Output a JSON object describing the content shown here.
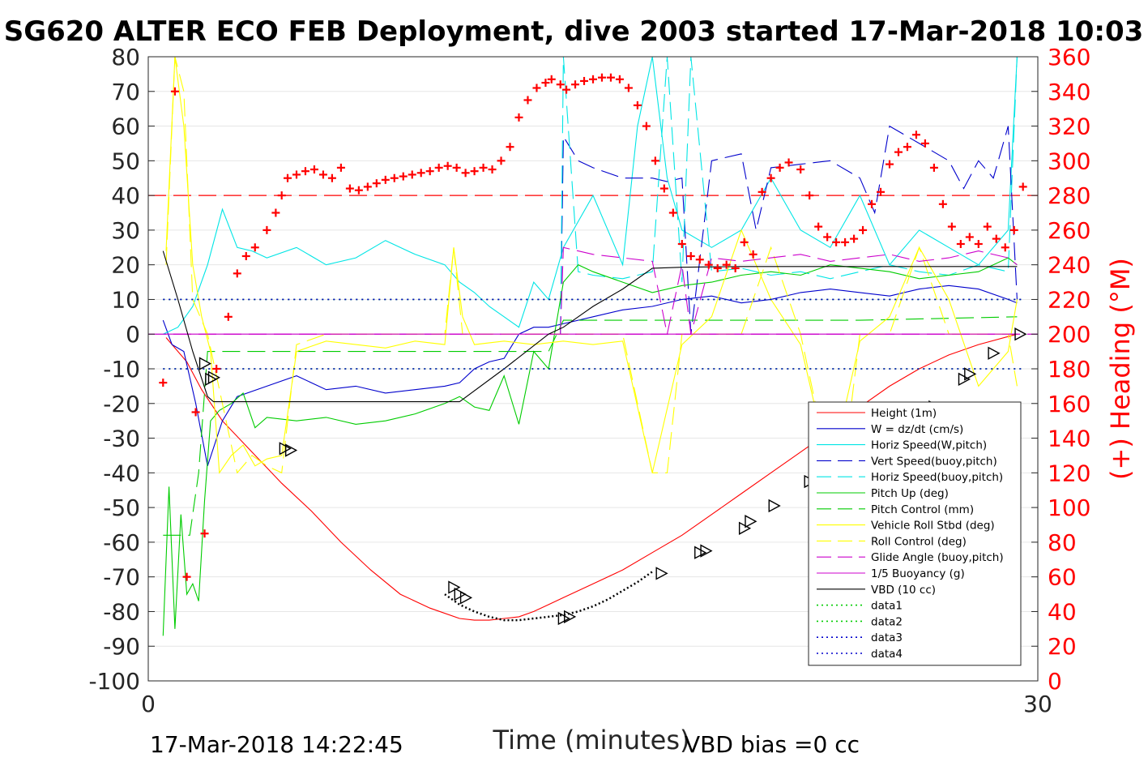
{
  "title": "SG620 ALTER ECO FEB Deployment, dive 2003 started 17-Mar-2018 10:03",
  "footer": {
    "start_time": "17-Mar-2018 14:22:45",
    "vbd_bias": "VBD bias =0 cc"
  },
  "colors": {
    "height": "#ff0000",
    "w": "#0000cc",
    "horiz_w": "#00e5e5",
    "vert_buoy": "#0000cc",
    "horiz_buoy": "#00e5e5",
    "pitch": "#00cc00",
    "pitch_control": "#00cc00",
    "roll": "#ffff00",
    "roll_control": "#ffff00",
    "glide": "#cc00cc",
    "buoyancy": "#cc00cc",
    "vbd": "#000000",
    "heading": "#ff0000",
    "grid": "#e6e6e6"
  },
  "chart_data": {
    "type": "line",
    "title": "SG620 ALTER ECO FEB Deployment, dive 2003 started 17-Mar-2018 10:03",
    "xlabel": "Time (minutes)",
    "ylabel_right": "(+) Heading (°M)",
    "xlim": [
      0,
      30
    ],
    "ylim": [
      -100,
      80
    ],
    "ylim_right": [
      0,
      360
    ],
    "x_ticks": [
      "0",
      "30"
    ],
    "y_ticks": [
      "80",
      "70",
      "60",
      "50",
      "40",
      "30",
      "20",
      "10",
      "0",
      "-10",
      "-20",
      "-30",
      "-40",
      "-50",
      "-60",
      "-70",
      "-80",
      "-90",
      "-100"
    ],
    "y_ticks_right": [
      "360",
      "340",
      "320",
      "300",
      "280",
      "260",
      "240",
      "220",
      "200",
      "180",
      "160",
      "140",
      "120",
      "100",
      "80",
      "60",
      "40",
      "20",
      "0"
    ],
    "grid": true,
    "legend_position": "bottom-right",
    "series": [
      {
        "name": "Height (1m)",
        "style": "solid",
        "color_key": "height",
        "x": [
          0.6,
          1.3,
          1.8,
          2.5,
          3.5,
          4.5,
          5.5,
          6.5,
          7.5,
          8.5,
          9.5,
          10.5,
          11.0,
          11.5,
          12.0,
          12.5,
          13.0,
          13.5,
          14.0,
          15.0,
          16.0,
          17.0,
          18.0,
          19.0,
          20.0,
          21.0,
          22.0,
          23.0,
          24.0,
          25.0,
          26.0,
          27.0,
          28.0,
          29.3
        ],
        "y": [
          -1,
          -8,
          -16,
          -25,
          -34,
          -43,
          -51,
          -60,
          -68,
          -75,
          -79,
          -82,
          -82.5,
          -82.5,
          -82,
          -81.5,
          -80,
          -78,
          -76,
          -72,
          -68,
          -63,
          -58,
          -52,
          -46,
          -40,
          -34,
          -28,
          -21,
          -15,
          -10,
          -6,
          -3,
          0
        ]
      },
      {
        "name": "W = dz/dt (cm/s)",
        "style": "solid",
        "color_key": "w",
        "x": [
          0.5,
          0.8,
          1.2,
          1.6,
          2.0,
          2.5,
          3.0,
          4.0,
          5.0,
          6.0,
          7.0,
          8.0,
          9.0,
          10.0,
          10.5,
          11.0,
          11.5,
          12.0,
          12.5,
          13.0,
          13.5,
          14.0,
          15.0,
          16.0,
          17.0,
          18.0,
          19.0,
          20.0,
          21.0,
          22.0,
          23.0,
          24.0,
          25.0,
          26.0,
          27.0,
          28.0,
          29.0,
          29.3
        ],
        "y": [
          4,
          -3,
          -5,
          -20,
          -38,
          -25,
          -18,
          -15,
          -12,
          -16,
          -15,
          -17,
          -16,
          -15,
          -14,
          -10,
          -8,
          -7,
          0,
          2,
          2,
          3,
          5,
          7,
          8,
          10,
          11,
          9,
          10,
          12,
          13,
          12,
          11,
          13,
          14,
          13,
          10,
          9
        ]
      },
      {
        "name": "Horiz Speed(W,pitch)",
        "style": "solid",
        "color_key": "horiz_w",
        "x": [
          0.5,
          1.0,
          1.5,
          2.0,
          2.5,
          3.0,
          3.5,
          4.0,
          5.0,
          6.0,
          7.0,
          8.0,
          9.0,
          10.0,
          10.5,
          11.0,
          11.5,
          12.0,
          12.5,
          13.0,
          13.5,
          14.0,
          15.0,
          16.0,
          16.5,
          17.0,
          17.5,
          18.0,
          19.0,
          20.0,
          21.0,
          22.0,
          23.0,
          24.0,
          25.0,
          26.0,
          27.0,
          28.0,
          29.0,
          29.3
        ],
        "y": [
          0,
          2,
          8,
          20,
          36,
          25,
          24,
          22,
          25,
          20,
          22,
          27,
          23,
          20,
          15,
          12,
          8,
          5,
          2,
          15,
          10,
          25,
          40,
          20,
          60,
          80,
          45,
          30,
          25,
          30,
          45,
          30,
          25,
          40,
          20,
          30,
          25,
          20,
          30,
          80
        ]
      },
      {
        "name": "Vert Speed(buoy,pitch)",
        "style": "dash",
        "color_key": "vert_buoy",
        "x": [
          13.9,
          14.0,
          14.5,
          15.0,
          16.0,
          17.0,
          17.5,
          18.0,
          18.3,
          19.0,
          20.0,
          20.5,
          21.0,
          22.0,
          23.0,
          24.0,
          24.5,
          25.0,
          26.0,
          27.0,
          27.5,
          28.0,
          28.5,
          29.0,
          29.3
        ],
        "y": [
          0,
          57,
          50,
          48,
          45,
          45,
          44,
          45,
          0,
          50,
          52,
          30,
          48,
          49,
          50,
          45,
          35,
          60,
          55,
          50,
          42,
          50,
          45,
          60,
          10
        ]
      },
      {
        "name": "Horiz Speed(buoy,pitch)",
        "style": "dash",
        "color_key": "horiz_buoy",
        "x": [
          13.9,
          14.0,
          14.5,
          15.0,
          16.0,
          17.0,
          17.5,
          18.0,
          18.3,
          19.0,
          20.0,
          21.0,
          22.0,
          23.0,
          24.0,
          25.0,
          26.0,
          27.0,
          28.0,
          29.0,
          29.3
        ],
        "y": [
          0,
          80,
          18,
          17,
          16,
          18,
          80,
          15,
          80,
          18,
          19,
          17,
          18,
          16,
          18,
          20,
          18,
          17,
          20,
          18,
          80
        ]
      },
      {
        "name": "Pitch Up (deg)",
        "style": "solid",
        "color_key": "pitch",
        "x": [
          0.5,
          0.7,
          0.9,
          1.1,
          1.3,
          1.5,
          1.7,
          1.9,
          2.1,
          2.4,
          2.8,
          3.2,
          3.6,
          4.0,
          5.0,
          6.0,
          7.0,
          8.0,
          9.0,
          10.0,
          10.5,
          11.0,
          11.5,
          12.0,
          12.5,
          13.0,
          13.5,
          14.0,
          14.5,
          15.0,
          16.0,
          17.0,
          18.0,
          19.0,
          20.0,
          21.0,
          22.0,
          23.0,
          24.0,
          25.0,
          26.0,
          27.0,
          28.0,
          29.0,
          29.3
        ],
        "y": [
          -87,
          -44,
          -85,
          -52,
          -75,
          -72,
          -77,
          -48,
          -25,
          -22,
          -20,
          -17,
          -27,
          -24,
          -25,
          -24,
          -26,
          -25,
          -23,
          -20,
          -18,
          -21,
          -22,
          -12,
          -26,
          -5,
          -10,
          15,
          20,
          18,
          15,
          12,
          14,
          15,
          17,
          18,
          17,
          20,
          19,
          18,
          16,
          17,
          18,
          22,
          20
        ]
      },
      {
        "name": "Pitch Control (mm)",
        "style": "dash",
        "color_key": "pitch_control",
        "x": [
          0.5,
          1.0,
          1.4,
          1.7,
          2.0,
          3.0,
          6.0,
          10.0,
          13.5,
          14.0,
          17.0,
          20.0,
          24.0,
          29.3
        ],
        "y": [
          -58,
          -58,
          -58,
          -40,
          -5,
          -5,
          -5,
          -5,
          -5,
          4,
          4,
          4,
          4,
          5
        ]
      },
      {
        "name": "Vehicle Roll Stbd (deg)",
        "style": "solid",
        "color_key": "roll",
        "x": [
          0.6,
          0.9,
          1.2,
          1.5,
          1.8,
          2.1,
          2.4,
          2.8,
          3.2,
          3.6,
          4.0,
          4.5,
          5.0,
          6.0,
          7.0,
          8.0,
          9.0,
          10.0,
          10.3,
          10.6,
          11.0,
          12.0,
          13.0,
          14.0,
          15.0,
          16.0,
          17.0,
          18.0,
          19.0,
          20.0,
          21.0,
          22.0,
          23.0,
          24.0,
          25.0,
          26.0,
          27.0,
          28.0,
          29.0,
          29.3
        ],
        "y": [
          24,
          80,
          60,
          20,
          5,
          -5,
          -40,
          -35,
          -32,
          -38,
          -36,
          -35,
          -5,
          -2,
          -3,
          -4,
          -2,
          -3,
          25,
          5,
          -3,
          -2,
          -3,
          -2,
          -3,
          -2,
          -40,
          -3,
          5,
          30,
          10,
          -3,
          -40,
          -2,
          5,
          25,
          10,
          -15,
          -5,
          10
        ]
      },
      {
        "name": "Roll Control (deg)",
        "style": "dash",
        "color_key": "roll_control",
        "x": [
          0.6,
          0.9,
          1.2,
          1.5,
          2.0,
          2.5,
          3.0,
          3.5,
          4.0,
          4.5,
          5.0,
          6.0,
          8.0,
          10.0,
          10.3,
          10.6,
          11.0,
          13.0,
          14.0,
          16.0,
          17.0,
          17.5,
          18.0,
          20.0,
          21.0,
          22.0,
          23.0,
          23.5,
          24.0,
          25.0,
          26.0,
          27.0,
          28.0,
          29.0,
          29.3
        ],
        "y": [
          20,
          80,
          70,
          10,
          0,
          -20,
          -40,
          -35,
          -38,
          -40,
          -3,
          0,
          0,
          0,
          25,
          0,
          0,
          0,
          0,
          0,
          -40,
          -40,
          0,
          0,
          25,
          0,
          -40,
          -35,
          0,
          0,
          25,
          0,
          0,
          0,
          -15
        ]
      },
      {
        "name": "Glide Angle (buoy,pitch)",
        "style": "dash",
        "color_key": "glide",
        "x": [
          13.9,
          14.0,
          15.0,
          16.0,
          17.0,
          17.5,
          18.0,
          18.3,
          19.0,
          20.0,
          21.0,
          22.0,
          23.0,
          24.0,
          25.0,
          26.0,
          27.0,
          28.0,
          29.0,
          29.3
        ],
        "y": [
          0,
          25,
          23,
          22,
          21,
          0,
          20,
          0,
          22,
          21,
          22,
          23,
          21,
          22,
          23,
          21,
          22,
          24,
          22,
          20
        ]
      },
      {
        "name": "1/5 Buoyancy (g)",
        "style": "solid",
        "color_key": "buoyancy",
        "x": [
          0.5,
          13.9,
          14.0,
          17.0,
          17.5,
          18.0,
          18.3,
          29.3
        ],
        "y": [
          0,
          0,
          0,
          0,
          0,
          0,
          0,
          0
        ]
      },
      {
        "name": "VBD (10 cc)",
        "style": "solid",
        "color_key": "vbd",
        "x": [
          0.5,
          1.0,
          1.5,
          2.0,
          2.2,
          6.0,
          10.0,
          10.5,
          12.0,
          13.5,
          14.0,
          15.0,
          16.0,
          17.0,
          18.0,
          20.0,
          22.0,
          24.0,
          26.0,
          28.0,
          29.3
        ],
        "y": [
          24,
          10,
          -5,
          -18,
          -19.5,
          -19.5,
          -19.5,
          -19.5,
          -10,
          0,
          2,
          8,
          13,
          19,
          19.3,
          19.5,
          19.5,
          19.5,
          19.5,
          19.5,
          19.5
        ]
      },
      {
        "name": "data1",
        "style": "dot",
        "color_key": "pitch",
        "x": [
          0.5,
          29.5
        ],
        "y": [
          10,
          10
        ]
      },
      {
        "name": "data2",
        "style": "dot",
        "color_key": "pitch",
        "x": [
          0.5,
          29.5
        ],
        "y": [
          -10,
          -10
        ]
      },
      {
        "name": "data3",
        "style": "dot",
        "color_key": "w",
        "x": [
          0.5,
          29.5
        ],
        "y": [
          10,
          10
        ]
      },
      {
        "name": "data4",
        "style": "dot",
        "color_key": "w",
        "x": [
          0.5,
          29.5
        ],
        "y": [
          -10,
          -10
        ]
      }
    ],
    "reference_lines": [
      {
        "axis": "y",
        "value": 0,
        "color_key": "glide",
        "style": "dash"
      },
      {
        "axis": "y_right",
        "value": 280,
        "color_key": "heading",
        "style": "dash"
      }
    ],
    "bottom_dotted": {
      "x": [
        10.0,
        10.5,
        11.0,
        11.5,
        12.0,
        12.5,
        13.0,
        13.5,
        14.0,
        14.5,
        15.0,
        15.5,
        16.0,
        16.5,
        17.0
      ],
      "y": [
        -75,
        -78,
        -80,
        -81.5,
        -82.5,
        -82.5,
        -82,
        -81.5,
        -81,
        -80,
        -78.5,
        -76.5,
        -74,
        -71.5,
        -68.5
      ]
    },
    "heading_markers": {
      "name": "(+) Heading (°M)",
      "x": [
        0.5,
        0.9,
        1.3,
        1.6,
        1.9,
        2.3,
        2.7,
        3.0,
        3.3,
        3.6,
        4.0,
        4.3,
        4.5,
        4.7,
        5.0,
        5.3,
        5.6,
        5.9,
        6.2,
        6.5,
        6.8,
        7.1,
        7.4,
        7.7,
        8.0,
        8.3,
        8.6,
        8.9,
        9.2,
        9.5,
        9.8,
        10.1,
        10.4,
        10.7,
        11.0,
        11.3,
        11.6,
        11.9,
        12.2,
        12.5,
        12.8,
        13.1,
        13.4,
        13.6,
        13.9,
        14.1,
        14.4,
        14.7,
        15.0,
        15.3,
        15.6,
        15.9,
        16.2,
        16.5,
        16.8,
        17.1,
        17.4,
        17.7,
        18.0,
        18.3,
        18.6,
        18.9,
        19.2,
        19.5,
        19.8,
        20.1,
        20.4,
        20.7,
        21.0,
        21.3,
        21.6,
        22.0,
        22.3,
        22.6,
        22.9,
        23.2,
        23.5,
        23.8,
        24.1,
        24.4,
        24.7,
        25.0,
        25.3,
        25.6,
        25.9,
        26.2,
        26.5,
        26.8,
        27.1,
        27.4,
        27.7,
        28.0,
        28.3,
        28.6,
        28.9,
        29.2,
        29.5
      ],
      "y": [
        172,
        340,
        60,
        155,
        85,
        180,
        210,
        235,
        245,
        250,
        260,
        270,
        280,
        290,
        292,
        294,
        295,
        292,
        290,
        296,
        284,
        283,
        285,
        287,
        289,
        290,
        291,
        292,
        293,
        294,
        296,
        297,
        296,
        293,
        294,
        296,
        295,
        300,
        308,
        325,
        335,
        342,
        345,
        347,
        344,
        341,
        344,
        346,
        347,
        348,
        348,
        347,
        342,
        332,
        320,
        300,
        284,
        270,
        252,
        245,
        243,
        240,
        238,
        240,
        238,
        253,
        246,
        282,
        290,
        296,
        299,
        295,
        280,
        262,
        256,
        253,
        253,
        255,
        260,
        275,
        282,
        298,
        305,
        308,
        315,
        310,
        296,
        275,
        262,
        252,
        256,
        252,
        262,
        255,
        250,
        260,
        285
      ]
    },
    "triangle_markers": {
      "x": [
        1.9,
        2.1,
        2.2,
        4.6,
        4.8,
        10.3,
        10.5,
        10.7,
        14.0,
        14.2,
        17.3,
        18.6,
        18.8,
        20.1,
        20.3,
        21.1,
        22.3,
        22.5,
        23.4,
        23.6,
        25.0,
        25.2,
        26.3,
        26.5,
        27.5,
        27.7,
        28.5,
        29.4
      ],
      "y": [
        -8.5,
        -13,
        -12.5,
        -33,
        -33.5,
        -73,
        -75,
        -76,
        -82,
        -81.5,
        -69,
        -63,
        -62.5,
        -56,
        -54,
        -49.5,
        -42.5,
        -41,
        -38.5,
        -38,
        -29,
        -27,
        -22.5,
        -21,
        -13,
        -11.5,
        -5.5,
        0
      ]
    }
  }
}
